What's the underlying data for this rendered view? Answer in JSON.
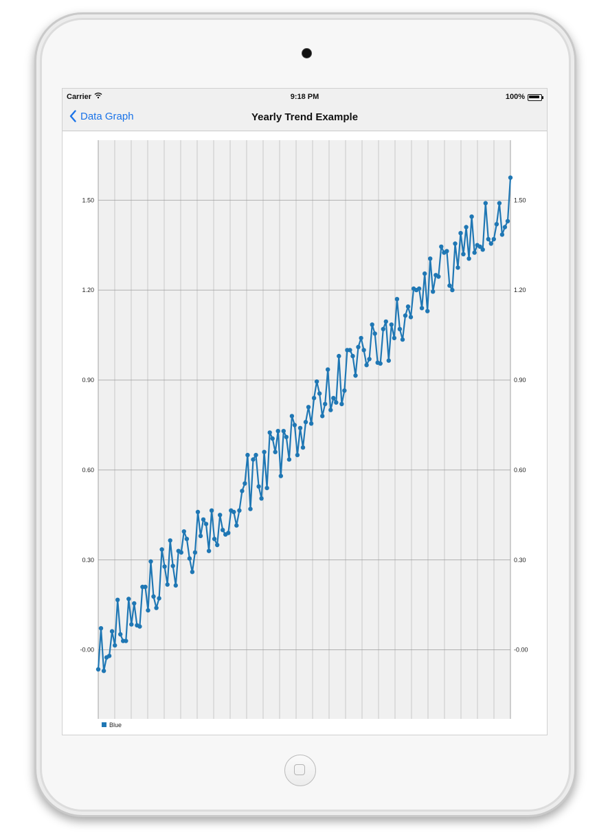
{
  "status_bar": {
    "carrier": "Carrier",
    "wifi_icon": "wifi-icon",
    "time": "9:18 PM",
    "battery": "100%"
  },
  "nav": {
    "back_label": "Data Graph",
    "back_icon": "chevron-left-icon",
    "title": "Yearly Trend Example"
  },
  "colors": {
    "series": "#1f77b4",
    "plot_bg": "#f0f0f0",
    "grid": "#9a9a9a",
    "accent": "#1a73e8"
  },
  "chart_data": {
    "type": "line",
    "title": "",
    "xlabel": "",
    "ylabel": "",
    "ylim": [
      -0.23,
      1.7
    ],
    "y_ticks": [
      "-0.00",
      "0.30",
      "0.60",
      "0.90",
      "1.20",
      "1.50"
    ],
    "y_tick_values": [
      0,
      0.3,
      0.6,
      0.9,
      1.2,
      1.5
    ],
    "grid": true,
    "legend": "bottom-left",
    "series": [
      {
        "name": "Blue",
        "values": [
          -0.065,
          0.072,
          -0.07,
          -0.025,
          -0.02,
          0.062,
          0.015,
          0.167,
          0.052,
          0.03,
          0.03,
          0.17,
          0.085,
          0.155,
          0.082,
          0.078,
          0.21,
          0.21,
          0.132,
          0.295,
          0.178,
          0.14,
          0.172,
          0.335,
          0.278,
          0.218,
          0.365,
          0.28,
          0.215,
          0.33,
          0.325,
          0.395,
          0.37,
          0.305,
          0.26,
          0.325,
          0.46,
          0.38,
          0.435,
          0.42,
          0.33,
          0.465,
          0.37,
          0.35,
          0.45,
          0.4,
          0.385,
          0.39,
          0.465,
          0.46,
          0.415,
          0.465,
          0.53,
          0.555,
          0.65,
          0.47,
          0.635,
          0.65,
          0.545,
          0.505,
          0.66,
          0.54,
          0.725,
          0.705,
          0.66,
          0.73,
          0.58,
          0.73,
          0.71,
          0.635,
          0.78,
          0.75,
          0.65,
          0.74,
          0.675,
          0.76,
          0.81,
          0.755,
          0.84,
          0.895,
          0.855,
          0.78,
          0.82,
          0.935,
          0.8,
          0.84,
          0.825,
          0.98,
          0.82,
          0.865,
          1.0,
          1.0,
          0.98,
          0.915,
          1.01,
          1.04,
          1.0,
          0.95,
          0.97,
          1.085,
          1.055,
          0.958,
          0.955,
          1.07,
          1.095,
          0.965,
          1.085,
          1.04,
          1.17,
          1.07,
          1.035,
          1.115,
          1.145,
          1.11,
          1.205,
          1.2,
          1.205,
          1.14,
          1.255,
          1.13,
          1.305,
          1.195,
          1.25,
          1.245,
          1.345,
          1.325,
          1.33,
          1.215,
          1.2,
          1.355,
          1.275,
          1.39,
          1.32,
          1.41,
          1.305,
          1.445,
          1.325,
          1.35,
          1.345,
          1.335,
          1.49,
          1.37,
          1.355,
          1.37,
          1.42,
          1.49,
          1.385,
          1.41,
          1.43,
          1.575
        ]
      }
    ]
  }
}
